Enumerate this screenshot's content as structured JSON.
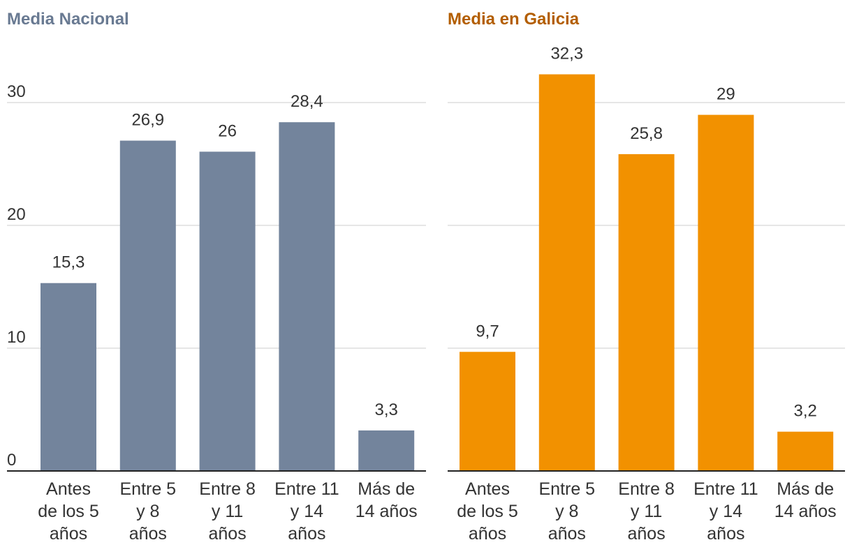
{
  "chart_data": [
    {
      "type": "bar",
      "title": "Media Nacional",
      "color": "#73849c",
      "title_color": "#697a92",
      "categories": [
        [
          "Antes",
          "de los 5",
          "años"
        ],
        [
          "Entre 5",
          "y 8",
          "años"
        ],
        [
          "Entre 8",
          "y 11",
          "años"
        ],
        [
          "Entre 11",
          "y 14",
          "años"
        ],
        [
          "Más de",
          "14 años"
        ]
      ],
      "values": [
        15.3,
        26.9,
        26,
        28.4,
        3.3
      ],
      "value_labels": [
        "15,3",
        "26,9",
        "26",
        "28,4",
        "3,3"
      ],
      "yticks": [
        "0",
        "10",
        "20",
        "30"
      ],
      "ytick_values": [
        0,
        10,
        20,
        30
      ],
      "ylim": [
        0,
        30
      ],
      "grid": true
    },
    {
      "type": "bar",
      "title": "Media en Galicia",
      "color": "#f29100",
      "title_color": "#b35e00",
      "categories": [
        [
          "Antes",
          "de los 5",
          "años"
        ],
        [
          "Entre 5",
          "y 8",
          "años"
        ],
        [
          "Entre 8",
          "y 11",
          "años"
        ],
        [
          "Entre 11",
          "y 14",
          "años"
        ],
        [
          "Más de",
          "14 años"
        ]
      ],
      "values": [
        9.7,
        32.3,
        25.8,
        29,
        3.2
      ],
      "value_labels": [
        "9,7",
        "32,3",
        "25,8",
        "29",
        "3,2"
      ],
      "ylim": [
        0,
        30
      ],
      "grid": true
    }
  ]
}
